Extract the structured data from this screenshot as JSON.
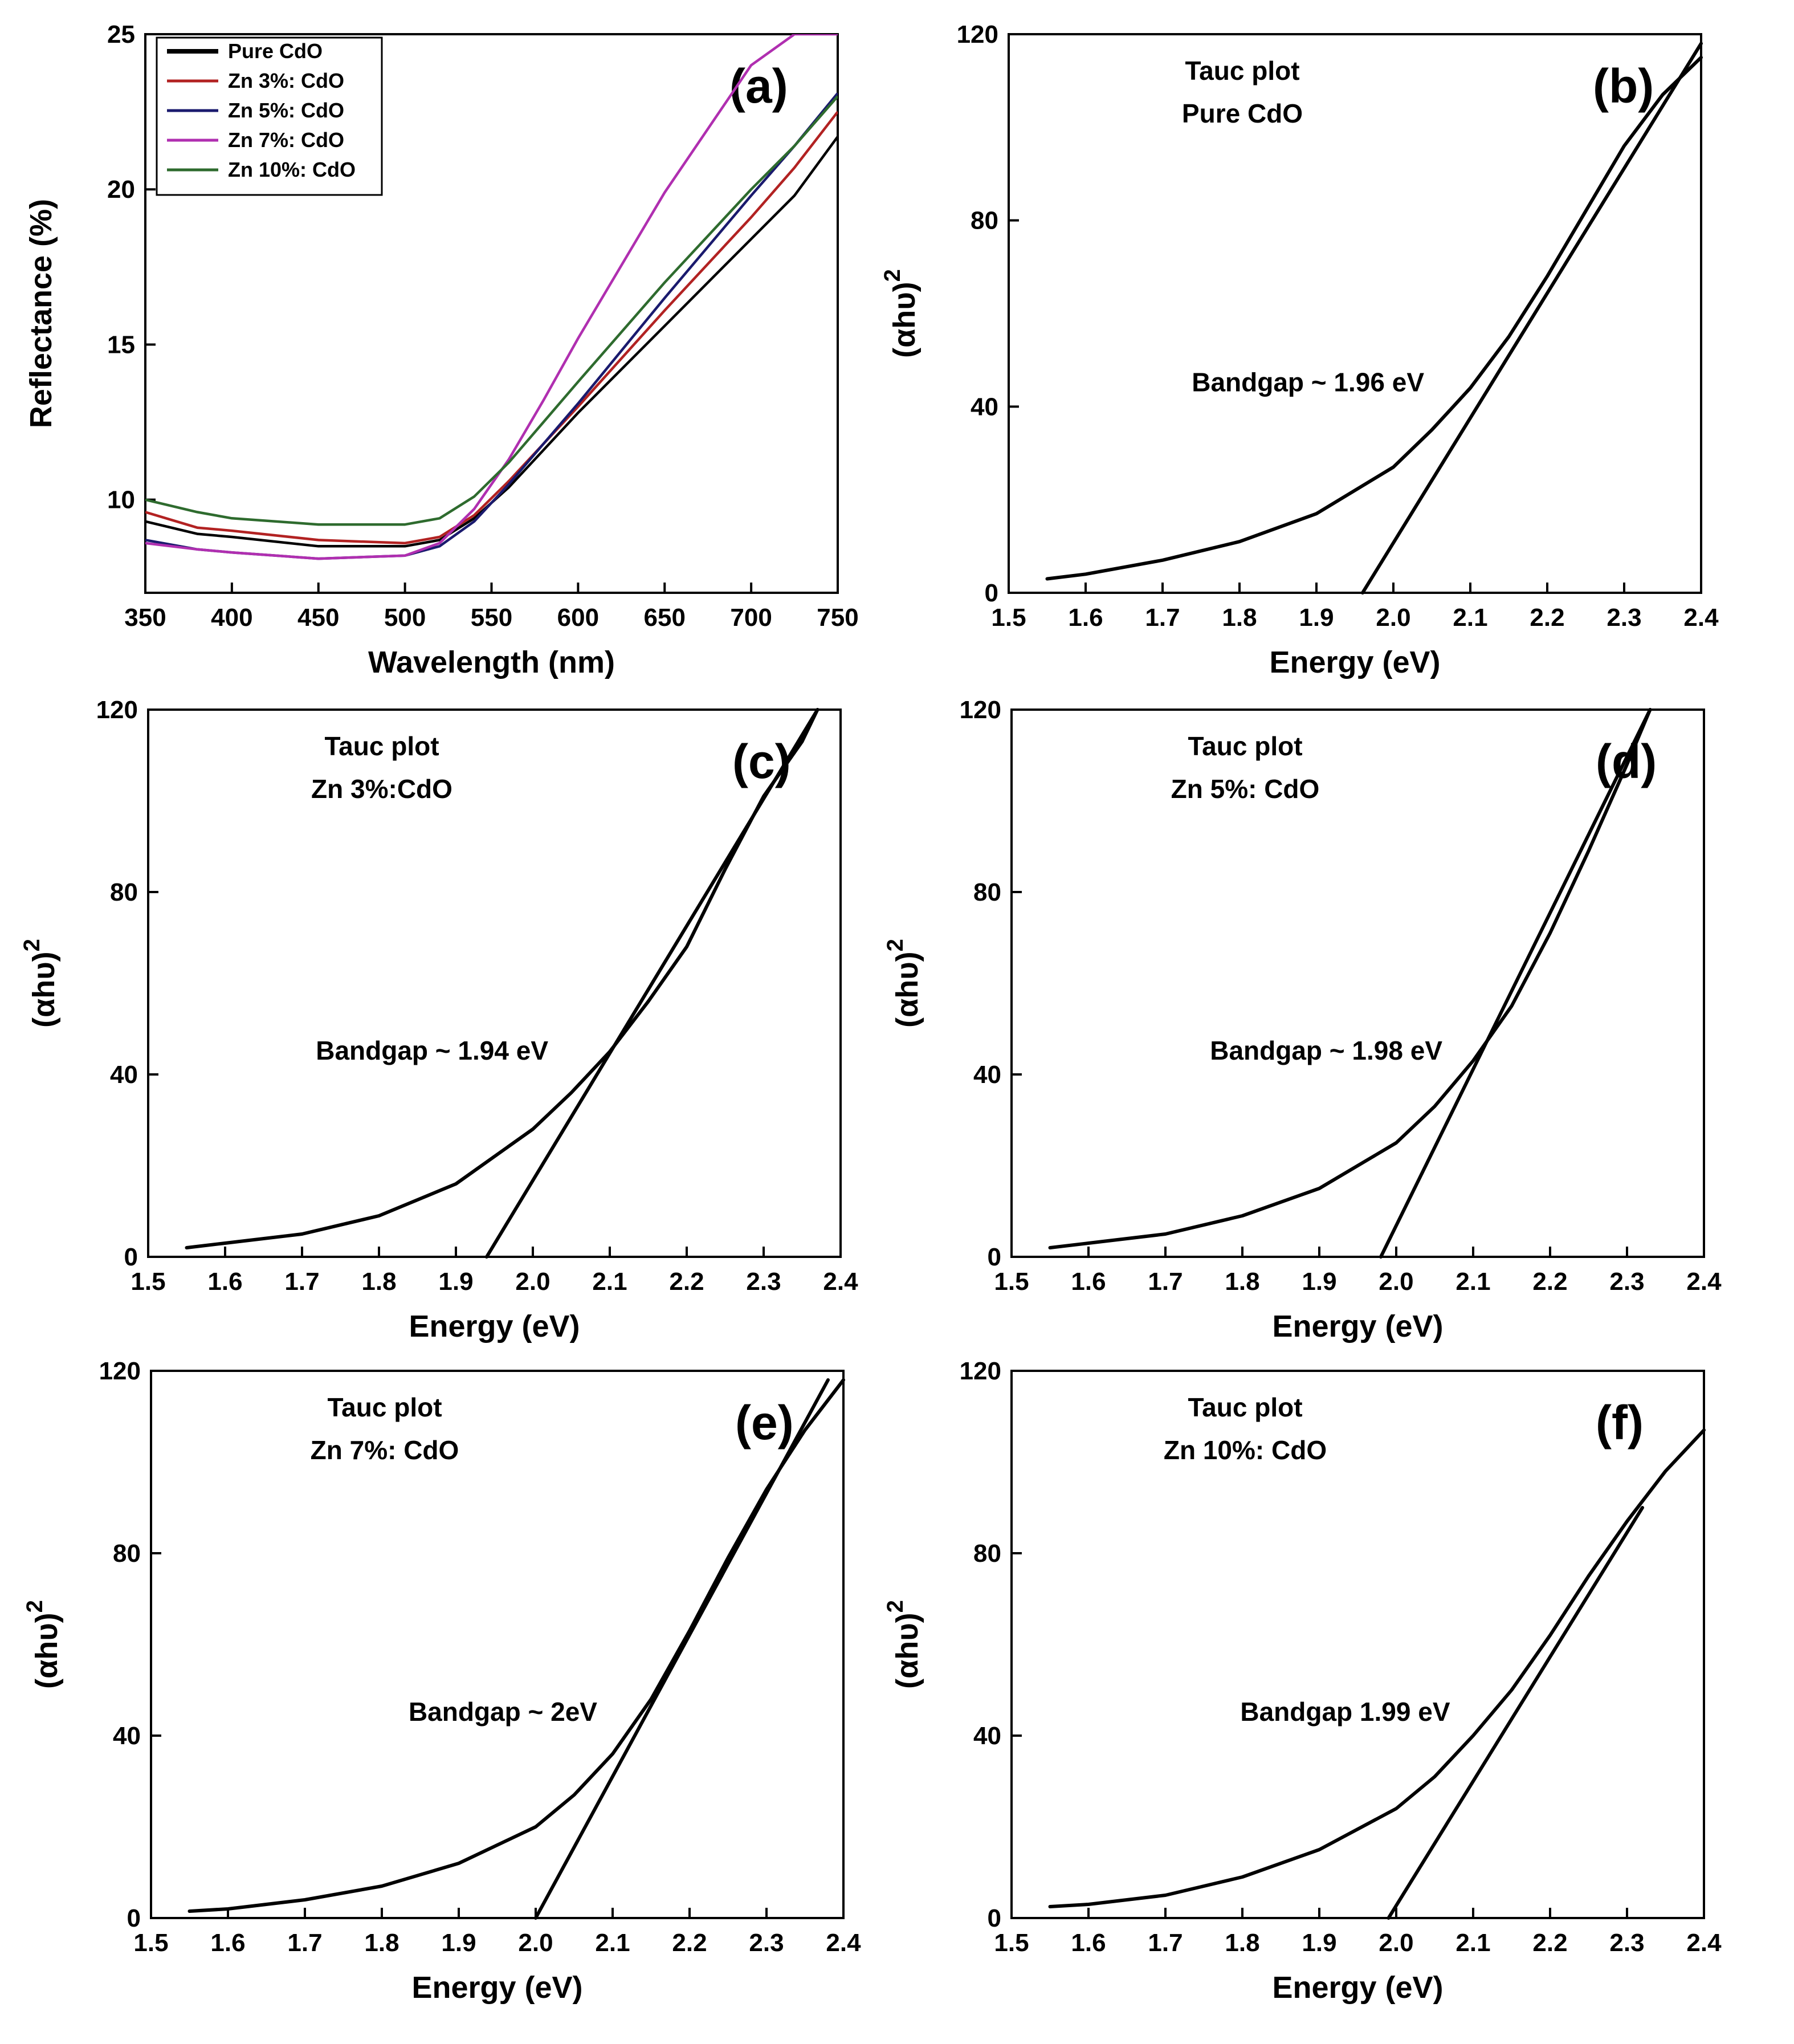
{
  "chart_data": [
    {
      "panel": "(a)",
      "type": "line",
      "title": "",
      "xlabel": "Wavelength (nm)",
      "ylabel": "Reflectance (%)",
      "xlim": [
        350,
        750
      ],
      "ylim": [
        7,
        25
      ],
      "xticks": [
        350,
        400,
        450,
        500,
        550,
        600,
        650,
        700,
        750
      ],
      "yticks": [
        10,
        15,
        20,
        25
      ],
      "x": [
        350,
        380,
        400,
        450,
        500,
        520,
        540,
        560,
        580,
        600,
        650,
        700,
        725,
        750
      ],
      "series": [
        {
          "name": "Pure CdO",
          "color": "#000000",
          "values": [
            9.3,
            8.9,
            8.8,
            8.5,
            8.5,
            8.7,
            9.4,
            10.4,
            11.6,
            12.8,
            15.6,
            18.4,
            19.8,
            21.7
          ]
        },
        {
          "name": "Zn 3%: CdO",
          "color": "#b22222",
          "values": [
            9.6,
            9.1,
            9.0,
            8.7,
            8.6,
            8.8,
            9.5,
            10.6,
            11.8,
            13.0,
            16.1,
            19.1,
            20.7,
            22.5
          ]
        },
        {
          "name": "Zn 5%: CdO",
          "color": "#1a1a6e",
          "values": [
            8.7,
            8.4,
            8.3,
            8.1,
            8.2,
            8.5,
            9.3,
            10.5,
            11.8,
            13.1,
            16.5,
            19.8,
            21.4,
            23.1
          ]
        },
        {
          "name": "Zn 7%: CdO",
          "color": "#b02fb0",
          "values": [
            8.6,
            8.4,
            8.3,
            8.1,
            8.2,
            8.6,
            9.7,
            11.3,
            13.2,
            15.2,
            19.9,
            24.0,
            25.0,
            25.0
          ]
        },
        {
          "name": "Zn 10%: CdO",
          "color": "#2e6b2e",
          "values": [
            10.0,
            9.6,
            9.4,
            9.2,
            9.2,
            9.4,
            10.1,
            11.2,
            12.5,
            13.8,
            17.0,
            20.0,
            21.4,
            23.0
          ]
        }
      ],
      "legend": [
        "Pure CdO",
        "Zn 3%: CdO",
        "Zn 5%: CdO",
        "Zn 7%: CdO",
        "Zn 10%: CdO"
      ]
    },
    {
      "panel": "(b)",
      "type": "line",
      "title_line1": "Tauc plot",
      "title_line2": "Pure CdO",
      "annotation": "Bandgap ~ 1.96 eV",
      "bandgap": 1.96,
      "xlabel": "Energy (eV)",
      "ylabel": "(αhυ)",
      "ylabel_sup": "2",
      "xlim": [
        1.5,
        2.4
      ],
      "ylim": [
        0,
        120
      ],
      "xticks": [
        "1.5",
        "1.6",
        "1.7",
        "1.8",
        "1.9",
        "2.0",
        "2.1",
        "2.2",
        "2.3",
        "2.4"
      ],
      "yticks": [
        "0",
        "40",
        "80",
        "120"
      ],
      "x": [
        1.55,
        1.6,
        1.7,
        1.8,
        1.9,
        2.0,
        2.05,
        2.1,
        2.15,
        2.2,
        2.25,
        2.3,
        2.35,
        2.4
      ],
      "y": [
        3,
        4,
        7,
        11,
        17,
        27,
        35,
        44,
        55,
        68,
        82,
        96,
        107,
        115
      ],
      "fit": [
        [
          1.96,
          0
        ],
        [
          2.4,
          118
        ]
      ]
    },
    {
      "panel": "(c)",
      "type": "line",
      "title_line1": "Tauc plot",
      "title_line2": "Zn 3%:CdO",
      "annotation": "Bandgap ~ 1.94 eV",
      "bandgap": 1.94,
      "xlabel": "Energy (eV)",
      "ylabel": "(αhυ)",
      "ylabel_sup": "2",
      "xlim": [
        1.5,
        2.4
      ],
      "ylim": [
        0,
        120
      ],
      "xticks": [
        "1.5",
        "1.6",
        "1.7",
        "1.8",
        "1.9",
        "2.0",
        "2.1",
        "2.2",
        "2.3",
        "2.4"
      ],
      "yticks": [
        "0",
        "40",
        "80",
        "120"
      ],
      "x": [
        1.55,
        1.6,
        1.7,
        1.8,
        1.9,
        2.0,
        2.05,
        2.1,
        2.15,
        2.2,
        2.25,
        2.3,
        2.35,
        2.37
      ],
      "y": [
        2,
        3,
        5,
        9,
        16,
        28,
        36,
        45,
        56,
        68,
        85,
        101,
        113,
        120
      ],
      "fit": [
        [
          1.94,
          0
        ],
        [
          2.37,
          120
        ]
      ]
    },
    {
      "panel": "(d)",
      "type": "line",
      "title_line1": "Tauc plot",
      "title_line2": "Zn 5%: CdO",
      "annotation": "Bandgap ~ 1.98 eV",
      "bandgap": 1.98,
      "xlabel": "Energy (eV)",
      "ylabel": "(αhυ)",
      "ylabel_sup": "2",
      "xlim": [
        1.5,
        2.4
      ],
      "ylim": [
        0,
        120
      ],
      "xticks": [
        "1.5",
        "1.6",
        "1.7",
        "1.8",
        "1.9",
        "2.0",
        "2.1",
        "2.2",
        "2.3",
        "2.4"
      ],
      "yticks": [
        "0",
        "40",
        "80",
        "120"
      ],
      "x": [
        1.55,
        1.6,
        1.7,
        1.8,
        1.9,
        2.0,
        2.05,
        2.1,
        2.15,
        2.2,
        2.25,
        2.3,
        2.33
      ],
      "y": [
        2,
        3,
        5,
        9,
        15,
        25,
        33,
        43,
        55,
        71,
        89,
        108,
        120
      ],
      "fit": [
        [
          1.98,
          0
        ],
        [
          2.33,
          120
        ]
      ]
    },
    {
      "panel": "(e)",
      "type": "line",
      "title_line1": "Tauc plot",
      "title_line2": "Zn 7%: CdO",
      "annotation": "Bandgap ~ 2eV",
      "bandgap": 2.0,
      "xlabel": "Energy (eV)",
      "ylabel": "(αhυ)",
      "ylabel_sup": "2",
      "xlim": [
        1.5,
        2.4
      ],
      "ylim": [
        0,
        120
      ],
      "xticks": [
        "1.5",
        "1.6",
        "1.7",
        "1.8",
        "1.9",
        "2.0",
        "2.1",
        "2.2",
        "2.3",
        "2.4"
      ],
      "yticks": [
        "0",
        "40",
        "80",
        "120"
      ],
      "x": [
        1.55,
        1.6,
        1.7,
        1.8,
        1.9,
        2.0,
        2.05,
        2.1,
        2.15,
        2.2,
        2.25,
        2.3,
        2.35,
        2.4
      ],
      "y": [
        1.5,
        2,
        4,
        7,
        12,
        20,
        27,
        36,
        48,
        63,
        79,
        94,
        107,
        118
      ],
      "fit": [
        [
          2.0,
          0
        ],
        [
          2.38,
          118
        ]
      ]
    },
    {
      "panel": "(f)",
      "type": "line",
      "title_line1": "Tauc plot",
      "title_line2": "Zn 10%: CdO",
      "annotation": "Bandgap 1.99 eV",
      "bandgap": 1.99,
      "xlabel": "Energy (eV)",
      "ylabel": "(αhυ)",
      "ylabel_sup": "2",
      "xlim": [
        1.5,
        2.4
      ],
      "ylim": [
        0,
        120
      ],
      "xticks": [
        "1.5",
        "1.6",
        "1.7",
        "1.8",
        "1.9",
        "2.0",
        "2.1",
        "2.2",
        "2.3",
        "2.4"
      ],
      "yticks": [
        "0",
        "40",
        "80",
        "120"
      ],
      "x": [
        1.55,
        1.6,
        1.7,
        1.8,
        1.9,
        2.0,
        2.05,
        2.1,
        2.15,
        2.2,
        2.25,
        2.3,
        2.35,
        2.4
      ],
      "y": [
        2.5,
        3,
        5,
        9,
        15,
        24,
        31,
        40,
        50,
        62,
        75,
        87,
        98,
        107
      ],
      "fit": [
        [
          1.99,
          0
        ],
        [
          2.32,
          90
        ]
      ]
    }
  ]
}
